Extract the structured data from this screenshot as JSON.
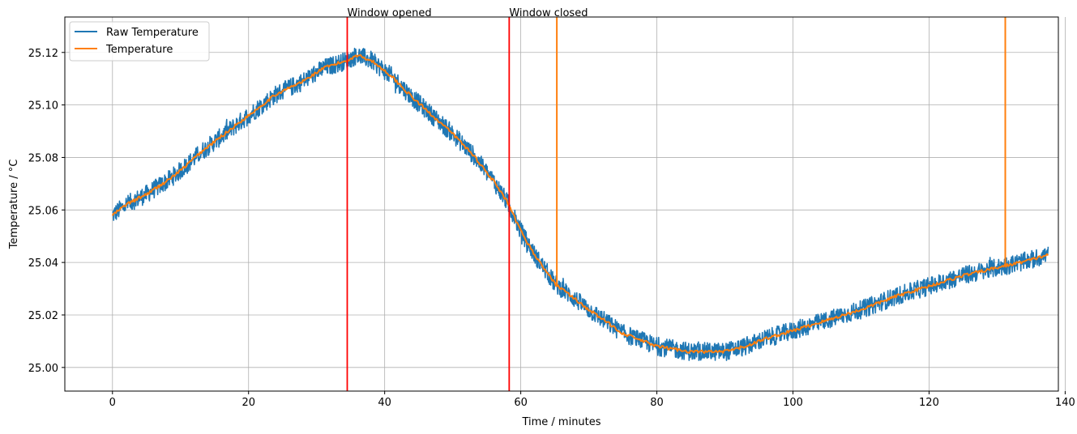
{
  "chart_data": {
    "type": "line",
    "title": "",
    "xlabel": "Time / minutes",
    "ylabel": "Temperature / °C",
    "xlim": [
      -7,
      139
    ],
    "ylim": [
      24.991,
      25.1335
    ],
    "xticks": [
      0,
      20,
      40,
      60,
      80,
      100,
      120,
      140
    ],
    "yticks": [
      25.0,
      25.02,
      25.04,
      25.06,
      25.08,
      25.1,
      25.12
    ],
    "ytick_labels": [
      "25.00",
      "25.02",
      "25.04",
      "25.06",
      "25.08",
      "25.10",
      "25.12"
    ],
    "grid": true,
    "legend_position": "top-left",
    "series": [
      {
        "name": "Raw Temperature",
        "color": "#1f77b4",
        "noise_amplitude": 0.0035,
        "x": [
          0,
          2,
          5,
          8,
          10,
          13,
          16,
          20,
          24,
          28,
          31,
          34.5,
          36,
          38,
          41,
          44,
          47,
          50,
          53,
          56,
          58,
          60,
          62,
          65,
          70,
          75,
          80,
          85,
          90,
          93,
          96,
          100,
          105,
          110,
          115,
          120,
          125,
          130,
          135,
          137.5
        ],
        "y": [
          25.058,
          25.062,
          25.066,
          25.071,
          25.075,
          25.082,
          25.088,
          25.096,
          25.104,
          25.109,
          25.114,
          25.117,
          25.119,
          25.117,
          25.111,
          25.103,
          25.096,
          25.089,
          25.081,
          25.071,
          25.063,
          25.052,
          25.043,
          25.032,
          25.022,
          25.013,
          25.008,
          25.006,
          25.006,
          25.008,
          25.011,
          25.014,
          25.018,
          25.022,
          25.027,
          25.031,
          25.035,
          25.038,
          25.041,
          25.043
        ]
      },
      {
        "name": "Temperature",
        "color": "#ff7f0e",
        "x": [
          0,
          2,
          5,
          8,
          10,
          13,
          16,
          20,
          24,
          28,
          31,
          34.5,
          36,
          38,
          41,
          44,
          47,
          50,
          53,
          56,
          58,
          60,
          62,
          65,
          70,
          75,
          80,
          85,
          90,
          93,
          96,
          100,
          105,
          110,
          115,
          120,
          125,
          130,
          135,
          137.5
        ],
        "y": [
          25.058,
          25.062,
          25.066,
          25.071,
          25.075,
          25.082,
          25.088,
          25.096,
          25.104,
          25.109,
          25.114,
          25.117,
          25.119,
          25.117,
          25.111,
          25.103,
          25.096,
          25.089,
          25.081,
          25.071,
          25.063,
          25.052,
          25.043,
          25.032,
          25.022,
          25.013,
          25.008,
          25.006,
          25.006,
          25.008,
          25.011,
          25.014,
          25.018,
          25.022,
          25.027,
          25.031,
          25.035,
          25.038,
          25.041,
          25.043
        ],
        "spikes": [
          65.3,
          131.2
        ]
      }
    ],
    "annotations": [
      {
        "x": 34.5,
        "label": "Window opened",
        "color": "#ff0000"
      },
      {
        "x": 58.3,
        "label": "Window closed",
        "color": "#ff0000"
      }
    ]
  }
}
